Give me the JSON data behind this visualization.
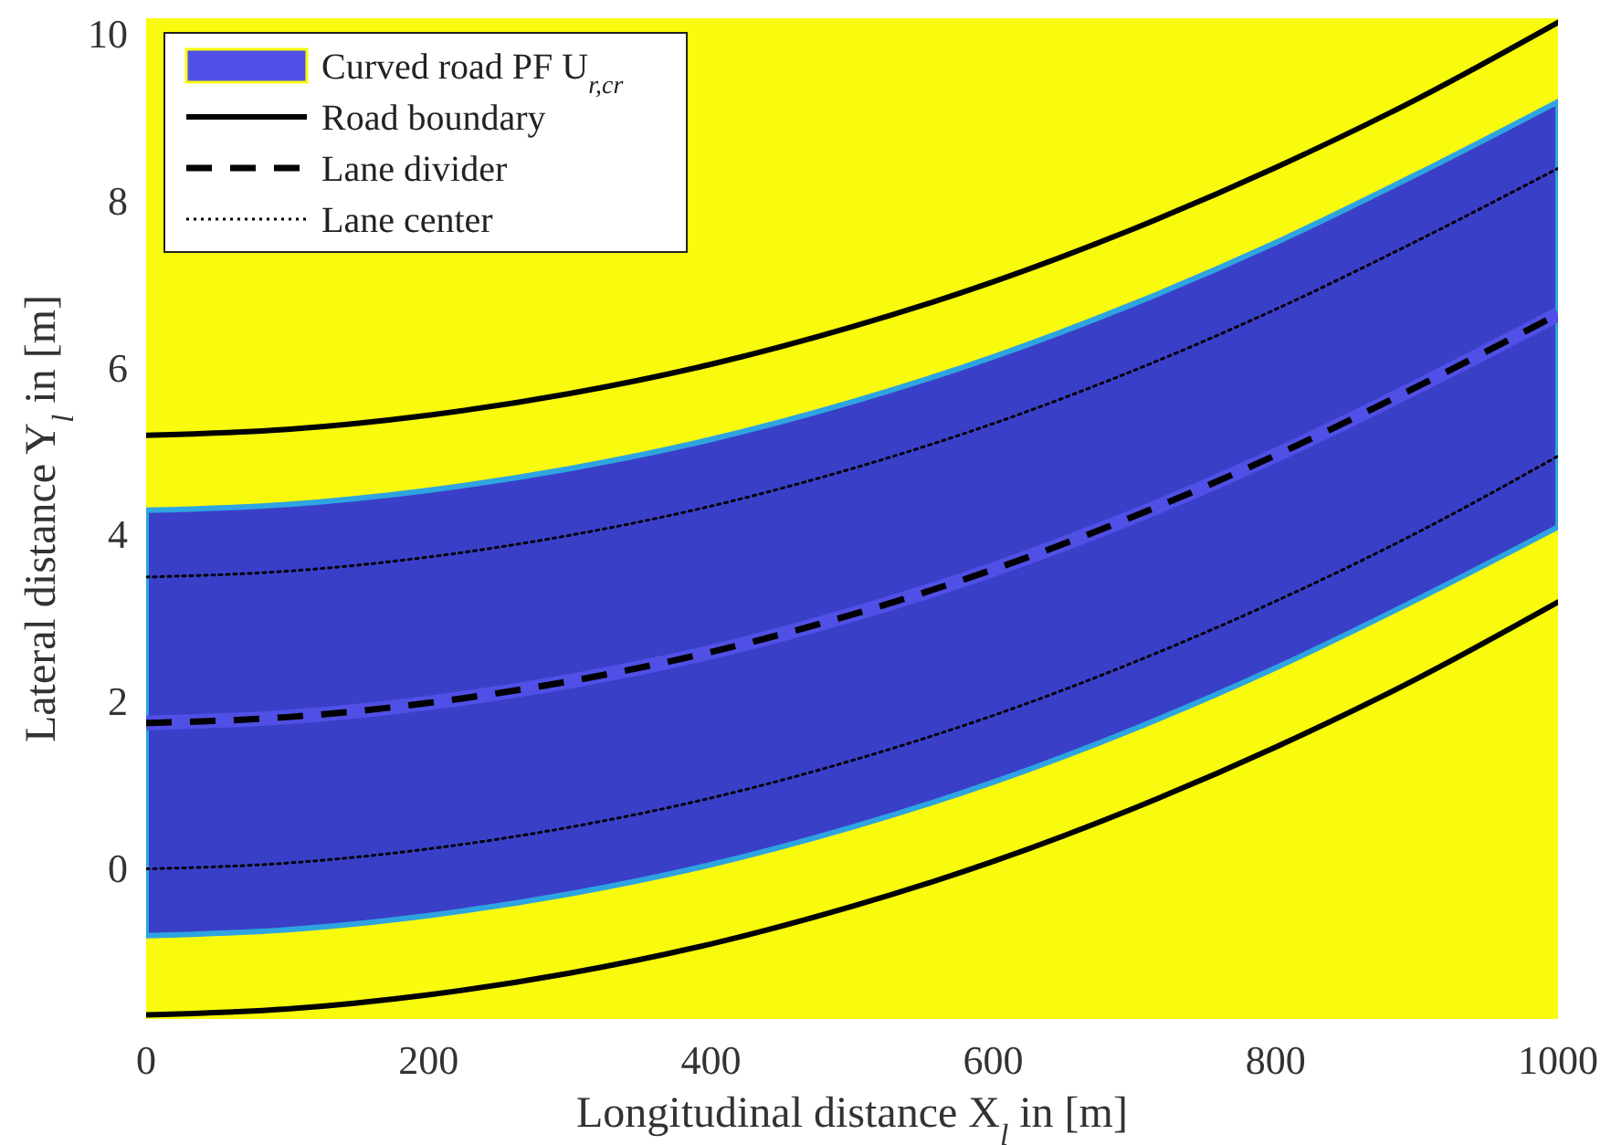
{
  "chart_data": {
    "type": "line",
    "xlabel": "Longitudinal distance X$_{l}$ in [m]",
    "ylabel": "Lateral distance Y$_{l}$ in [m]",
    "x": [
      0,
      100,
      200,
      300,
      400,
      500,
      600,
      700,
      800,
      900,
      1000
    ],
    "xlim": [
      0,
      1000
    ],
    "xticks": [
      0,
      200,
      400,
      600,
      800,
      1000
    ],
    "ylim": [
      -1.8,
      10.2
    ],
    "yticks": [
      0,
      2,
      4,
      6,
      8,
      10
    ],
    "legend": "top left",
    "grid": false,
    "series": [
      {
        "name": "Curved road PF U$_{r,cr}$",
        "type": "line",
        "color": "#5050e6",
        "values": [
          1.75,
          1.82,
          1.99,
          2.25,
          2.6,
          3.05,
          3.59,
          4.23,
          4.96,
          5.78,
          6.65
        ],
        "lower": [
          -0.8,
          -0.73,
          -0.56,
          -0.3,
          0.05,
          0.5,
          1.04,
          1.68,
          2.41,
          3.23,
          4.1
        ],
        "upper": [
          4.3,
          4.37,
          4.54,
          4.8,
          5.15,
          5.6,
          6.14,
          6.78,
          7.51,
          8.33,
          9.2
        ]
      },
      {
        "name": "Road boundary",
        "color": "#000000",
        "line_style": "solid",
        "x": [
          0,
          100,
          200,
          300,
          400,
          500,
          600,
          700,
          800,
          900,
          1000,
          null,
          0,
          100,
          200,
          300,
          400,
          500,
          600,
          700,
          800,
          900,
          1000
        ],
        "values": [
          5.2,
          5.27,
          5.44,
          5.7,
          6.05,
          6.5,
          7.04,
          7.68,
          8.41,
          9.23,
          10.15,
          null,
          -1.75,
          -1.68,
          -1.51,
          -1.25,
          -0.9,
          -0.45,
          0.09,
          0.73,
          1.46,
          2.28,
          3.2
        ]
      },
      {
        "name": "Lane divider",
        "color": "#000000",
        "line_style": "dashed",
        "values": [
          1.75,
          1.82,
          1.99,
          2.25,
          2.6,
          3.05,
          3.59,
          4.23,
          4.96,
          5.78,
          6.65
        ]
      },
      {
        "name": "Lane center",
        "color": "#000000",
        "line_style": "dotted",
        "x": [
          0,
          100,
          200,
          300,
          400,
          500,
          600,
          700,
          800,
          900,
          1000,
          null,
          0,
          100,
          200,
          300,
          400,
          500,
          600,
          700,
          800,
          900,
          1000
        ],
        "values": [
          3.5,
          3.57,
          3.74,
          4,
          4.35,
          4.8,
          5.34,
          5.98,
          6.71,
          7.53,
          8.4,
          null,
          0,
          0.07,
          0.24,
          0.5,
          0.85,
          1.3,
          1.84,
          2.48,
          3.21,
          4.03,
          4.95
        ]
      }
    ]
  }
}
